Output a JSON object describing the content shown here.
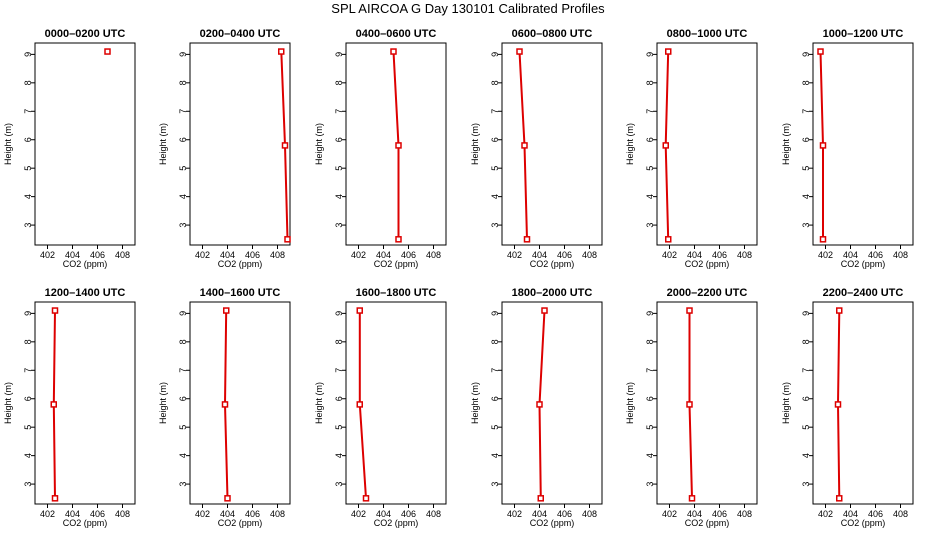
{
  "page": {
    "title": "SPL AIRCOA G  Day 130101  Calibrated Profiles"
  },
  "colors": {
    "profile": "#dd0000",
    "axis": "#000000",
    "background": "#ffffff"
  },
  "chart_data": [
    {
      "type": "line",
      "title": "0000–0200 UTC",
      "xlabel": "CO2 (ppm)",
      "ylabel": "Height (m)",
      "xlim": [
        401,
        409
      ],
      "ylim": [
        2.3,
        9.4
      ],
      "xticks": [
        402,
        404,
        406,
        408
      ],
      "yticks": [
        3,
        4,
        5,
        6,
        7,
        8,
        9
      ],
      "points": [
        {
          "x": 406.8,
          "y": 9.1
        }
      ],
      "markers": "square"
    },
    {
      "type": "line",
      "title": "0200–0400 UTC",
      "xlabel": "CO2 (ppm)",
      "ylabel": "Height (m)",
      "xlim": [
        401,
        409
      ],
      "ylim": [
        2.3,
        9.4
      ],
      "xticks": [
        402,
        404,
        406,
        408
      ],
      "yticks": [
        3,
        4,
        5,
        6,
        7,
        8,
        9
      ],
      "points": [
        {
          "x": 408.3,
          "y": 9.1
        },
        {
          "x": 408.6,
          "y": 5.8
        },
        {
          "x": 408.8,
          "y": 2.5
        }
      ],
      "markers": "square"
    },
    {
      "type": "line",
      "title": "0400–0600 UTC",
      "xlabel": "CO2 (ppm)",
      "ylabel": "Height (m)",
      "xlim": [
        401,
        409
      ],
      "ylim": [
        2.3,
        9.4
      ],
      "xticks": [
        402,
        404,
        406,
        408
      ],
      "yticks": [
        3,
        4,
        5,
        6,
        7,
        8,
        9
      ],
      "points": [
        {
          "x": 404.8,
          "y": 9.1
        },
        {
          "x": 405.2,
          "y": 5.8
        },
        {
          "x": 405.2,
          "y": 2.5
        }
      ],
      "markers": "square"
    },
    {
      "type": "line",
      "title": "0600–0800 UTC",
      "xlabel": "CO2 (ppm)",
      "ylabel": "Height (m)",
      "xlim": [
        401,
        409
      ],
      "ylim": [
        2.3,
        9.4
      ],
      "xticks": [
        402,
        404,
        406,
        408
      ],
      "yticks": [
        3,
        4,
        5,
        6,
        7,
        8,
        9
      ],
      "points": [
        {
          "x": 402.4,
          "y": 9.1
        },
        {
          "x": 402.8,
          "y": 5.8
        },
        {
          "x": 403.0,
          "y": 2.5
        }
      ],
      "markers": "square"
    },
    {
      "type": "line",
      "title": "0800–1000 UTC",
      "xlabel": "CO2 (ppm)",
      "ylabel": "Height (m)",
      "xlim": [
        401,
        409
      ],
      "ylim": [
        2.3,
        9.4
      ],
      "xticks": [
        402,
        404,
        406,
        408
      ],
      "yticks": [
        3,
        4,
        5,
        6,
        7,
        8,
        9
      ],
      "points": [
        {
          "x": 401.9,
          "y": 9.1
        },
        {
          "x": 401.7,
          "y": 5.8
        },
        {
          "x": 401.9,
          "y": 2.5
        }
      ],
      "markers": "square"
    },
    {
      "type": "line",
      "title": "1000–1200 UTC",
      "xlabel": "CO2 (ppm)",
      "ylabel": "Height (m)",
      "xlim": [
        401,
        409
      ],
      "ylim": [
        2.3,
        9.4
      ],
      "xticks": [
        402,
        404,
        406,
        408
      ],
      "yticks": [
        3,
        4,
        5,
        6,
        7,
        8,
        9
      ],
      "points": [
        {
          "x": 401.6,
          "y": 9.1
        },
        {
          "x": 401.8,
          "y": 5.8
        },
        {
          "x": 401.8,
          "y": 2.5
        }
      ],
      "markers": "square"
    },
    {
      "type": "line",
      "title": "1200–1400 UTC",
      "xlabel": "CO2 (ppm)",
      "ylabel": "Height (m)",
      "xlim": [
        401,
        409
      ],
      "ylim": [
        2.3,
        9.4
      ],
      "xticks": [
        402,
        404,
        406,
        408
      ],
      "yticks": [
        3,
        4,
        5,
        6,
        7,
        8,
        9
      ],
      "points": [
        {
          "x": 402.6,
          "y": 9.1
        },
        {
          "x": 402.5,
          "y": 5.8
        },
        {
          "x": 402.6,
          "y": 2.5
        }
      ],
      "markers": "square"
    },
    {
      "type": "line",
      "title": "1400–1600 UTC",
      "xlabel": "CO2 (ppm)",
      "ylabel": "Height (m)",
      "xlim": [
        401,
        409
      ],
      "ylim": [
        2.3,
        9.4
      ],
      "xticks": [
        402,
        404,
        406,
        408
      ],
      "yticks": [
        3,
        4,
        5,
        6,
        7,
        8,
        9
      ],
      "points": [
        {
          "x": 403.9,
          "y": 9.1
        },
        {
          "x": 403.8,
          "y": 5.8
        },
        {
          "x": 404.0,
          "y": 2.5
        }
      ],
      "markers": "square"
    },
    {
      "type": "line",
      "title": "1600–1800 UTC",
      "xlabel": "CO2 (ppm)",
      "ylabel": "Height (m)",
      "xlim": [
        401,
        409
      ],
      "ylim": [
        2.3,
        9.4
      ],
      "xticks": [
        402,
        404,
        406,
        408
      ],
      "yticks": [
        3,
        4,
        5,
        6,
        7,
        8,
        9
      ],
      "points": [
        {
          "x": 402.1,
          "y": 9.1
        },
        {
          "x": 402.1,
          "y": 5.8
        },
        {
          "x": 402.6,
          "y": 2.5
        }
      ],
      "markers": "square"
    },
    {
      "type": "line",
      "title": "1800–2000 UTC",
      "xlabel": "CO2 (ppm)",
      "ylabel": "Height (m)",
      "xlim": [
        401,
        409
      ],
      "ylim": [
        2.3,
        9.4
      ],
      "xticks": [
        402,
        404,
        406,
        408
      ],
      "yticks": [
        3,
        4,
        5,
        6,
        7,
        8,
        9
      ],
      "points": [
        {
          "x": 404.4,
          "y": 9.1
        },
        {
          "x": 404.0,
          "y": 5.8
        },
        {
          "x": 404.1,
          "y": 2.5
        }
      ],
      "markers": "square"
    },
    {
      "type": "line",
      "title": "2000–2200 UTC",
      "xlabel": "CO2 (ppm)",
      "ylabel": "Height (m)",
      "xlim": [
        401,
        409
      ],
      "ylim": [
        2.3,
        9.4
      ],
      "xticks": [
        402,
        404,
        406,
        408
      ],
      "yticks": [
        3,
        4,
        5,
        6,
        7,
        8,
        9
      ],
      "points": [
        {
          "x": 403.6,
          "y": 9.1
        },
        {
          "x": 403.6,
          "y": 5.8
        },
        {
          "x": 403.8,
          "y": 2.5
        }
      ],
      "markers": "square"
    },
    {
      "type": "line",
      "title": "2200–2400 UTC",
      "xlabel": "CO2 (ppm)",
      "ylabel": "Height (m)",
      "xlim": [
        401,
        409
      ],
      "ylim": [
        2.3,
        9.4
      ],
      "xticks": [
        402,
        404,
        406,
        408
      ],
      "yticks": [
        3,
        4,
        5,
        6,
        7,
        8,
        9
      ],
      "points": [
        {
          "x": 403.1,
          "y": 9.1
        },
        {
          "x": 403.0,
          "y": 5.8
        },
        {
          "x": 403.1,
          "y": 2.5
        }
      ],
      "markers": "square"
    }
  ]
}
